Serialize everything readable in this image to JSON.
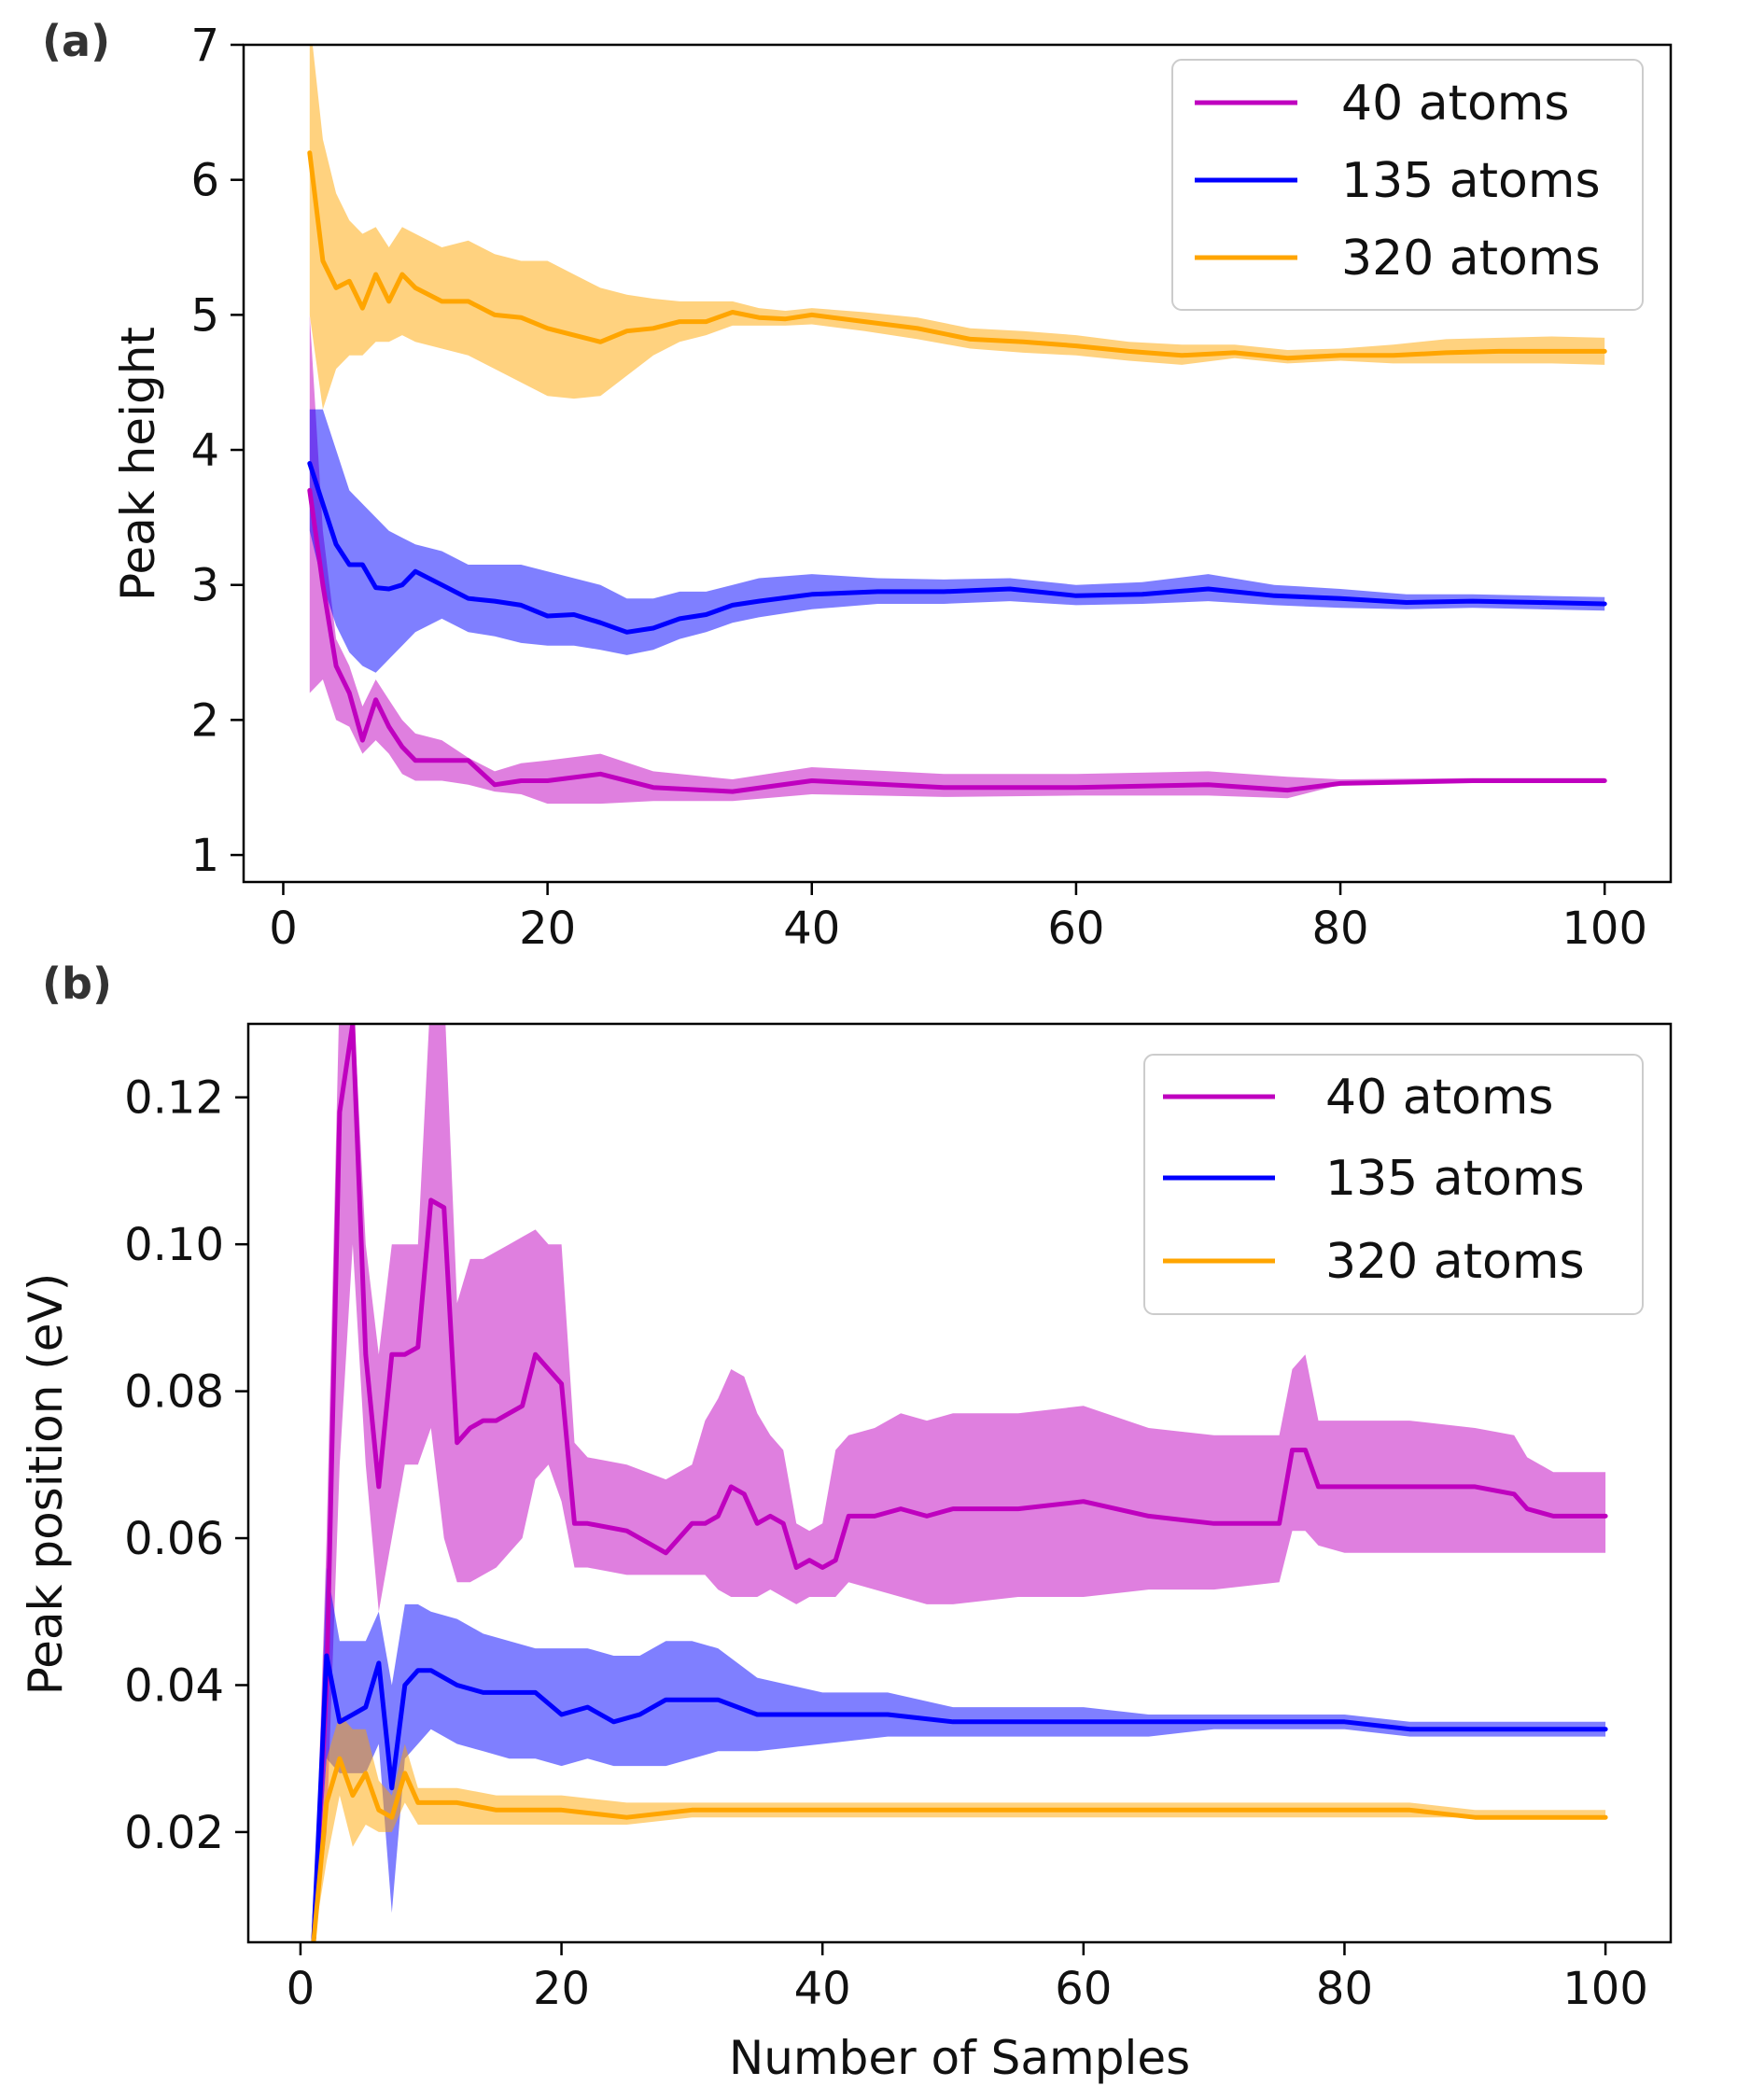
{
  "figure": {
    "xlabel": "Number of Samples"
  },
  "chart_data": [
    {
      "type": "line",
      "panel_label": "(a)",
      "title": "",
      "xlabel": "",
      "ylabel": "Peak height",
      "xlim": [
        -3,
        105
      ],
      "ylim": [
        0.8,
        7.0
      ],
      "xticks": [
        0,
        20,
        40,
        60,
        80,
        100
      ],
      "xtick_labels": [
        "0",
        "20",
        "40",
        "60",
        "80",
        "100"
      ],
      "yticks": [
        1,
        2,
        3,
        4,
        5,
        6,
        7
      ],
      "ytick_labels": [
        "1",
        "2",
        "3",
        "4",
        "5",
        "6",
        "7"
      ],
      "grid": false,
      "legend_position": "top-right",
      "series": [
        {
          "name": "40 atoms",
          "color": "#BF00BF",
          "x": [
            2,
            3,
            4,
            5,
            6,
            7,
            8,
            9,
            10,
            12,
            14,
            16,
            18,
            20,
            24,
            28,
            34,
            40,
            50,
            60,
            70,
            76,
            80,
            90,
            100
          ],
          "y": [
            3.7,
            3.0,
            2.4,
            2.2,
            1.85,
            2.15,
            1.95,
            1.8,
            1.7,
            1.7,
            1.7,
            1.52,
            1.55,
            1.55,
            1.6,
            1.5,
            1.47,
            1.55,
            1.5,
            1.5,
            1.52,
            1.48,
            1.53,
            1.55,
            1.55
          ],
          "lower": [
            2.2,
            2.3,
            2.0,
            1.95,
            1.75,
            1.85,
            1.75,
            1.6,
            1.55,
            1.55,
            1.52,
            1.47,
            1.45,
            1.38,
            1.38,
            1.4,
            1.4,
            1.45,
            1.43,
            1.44,
            1.44,
            1.42,
            1.52,
            1.54,
            1.54
          ],
          "upper": [
            5.0,
            3.4,
            2.6,
            2.4,
            2.1,
            2.3,
            2.15,
            2.0,
            1.9,
            1.85,
            1.72,
            1.62,
            1.68,
            1.7,
            1.75,
            1.62,
            1.56,
            1.65,
            1.6,
            1.6,
            1.62,
            1.58,
            1.56,
            1.57,
            1.57
          ]
        },
        {
          "name": "135 atoms",
          "color": "#0000FF",
          "x": [
            2,
            3,
            4,
            5,
            6,
            7,
            8,
            9,
            10,
            12,
            14,
            16,
            18,
            20,
            22,
            24,
            26,
            28,
            30,
            32,
            34,
            36,
            40,
            45,
            50,
            55,
            60,
            65,
            70,
            75,
            80,
            85,
            90,
            95,
            100
          ],
          "y": [
            3.9,
            3.6,
            3.3,
            3.15,
            3.15,
            2.98,
            2.97,
            3.0,
            3.1,
            3.0,
            2.9,
            2.88,
            2.85,
            2.77,
            2.78,
            2.72,
            2.65,
            2.68,
            2.75,
            2.78,
            2.85,
            2.88,
            2.93,
            2.95,
            2.95,
            2.97,
            2.92,
            2.93,
            2.97,
            2.92,
            2.9,
            2.87,
            2.88,
            2.87,
            2.86
          ],
          "lower": [
            3.4,
            3.0,
            2.7,
            2.5,
            2.4,
            2.35,
            2.45,
            2.55,
            2.65,
            2.75,
            2.65,
            2.62,
            2.57,
            2.55,
            2.55,
            2.52,
            2.48,
            2.52,
            2.6,
            2.65,
            2.72,
            2.76,
            2.82,
            2.86,
            2.86,
            2.88,
            2.85,
            2.86,
            2.88,
            2.85,
            2.83,
            2.82,
            2.83,
            2.82,
            2.81
          ],
          "upper": [
            4.3,
            4.3,
            4.0,
            3.7,
            3.6,
            3.5,
            3.4,
            3.35,
            3.3,
            3.25,
            3.15,
            3.15,
            3.15,
            3.1,
            3.05,
            3.0,
            2.9,
            2.9,
            2.95,
            2.95,
            3.0,
            3.05,
            3.08,
            3.05,
            3.04,
            3.05,
            3.0,
            3.02,
            3.08,
            3.0,
            2.97,
            2.93,
            2.93,
            2.92,
            2.91
          ]
        },
        {
          "name": "320 atoms",
          "color": "#FFA500",
          "x": [
            2,
            3,
            4,
            5,
            6,
            7,
            8,
            9,
            10,
            12,
            14,
            16,
            18,
            20,
            22,
            24,
            26,
            28,
            30,
            32,
            34,
            36,
            38,
            40,
            44,
            48,
            52,
            56,
            60,
            64,
            68,
            72,
            76,
            80,
            84,
            88,
            92,
            96,
            100
          ],
          "y": [
            6.2,
            5.4,
            5.2,
            5.25,
            5.05,
            5.3,
            5.1,
            5.3,
            5.2,
            5.1,
            5.1,
            5.0,
            4.98,
            4.9,
            4.85,
            4.8,
            4.88,
            4.9,
            4.95,
            4.95,
            5.02,
            4.98,
            4.97,
            5.0,
            4.95,
            4.9,
            4.82,
            4.8,
            4.77,
            4.73,
            4.7,
            4.72,
            4.68,
            4.7,
            4.7,
            4.72,
            4.73,
            4.73,
            4.73
          ],
          "lower": [
            5.0,
            4.3,
            4.6,
            4.7,
            4.7,
            4.8,
            4.8,
            4.85,
            4.8,
            4.75,
            4.7,
            4.6,
            4.5,
            4.4,
            4.38,
            4.4,
            4.55,
            4.7,
            4.8,
            4.85,
            4.92,
            4.92,
            4.92,
            4.93,
            4.88,
            4.82,
            4.75,
            4.72,
            4.7,
            4.66,
            4.63,
            4.68,
            4.64,
            4.66,
            4.64,
            4.64,
            4.64,
            4.64,
            4.63
          ],
          "upper": [
            7.2,
            6.3,
            5.9,
            5.7,
            5.6,
            5.65,
            5.5,
            5.65,
            5.6,
            5.5,
            5.55,
            5.45,
            5.4,
            5.4,
            5.3,
            5.2,
            5.15,
            5.12,
            5.1,
            5.1,
            5.1,
            5.05,
            5.03,
            5.05,
            5.02,
            4.98,
            4.9,
            4.88,
            4.85,
            4.8,
            4.78,
            4.78,
            4.74,
            4.75,
            4.78,
            4.82,
            4.83,
            4.84,
            4.83
          ]
        }
      ]
    },
    {
      "type": "line",
      "panel_label": "(b)",
      "title": "",
      "xlabel": "Number of Samples",
      "ylabel": "Peak position (eV)",
      "xlim": [
        -4,
        105
      ],
      "ylim": [
        0.005,
        0.13
      ],
      "xticks": [
        0,
        20,
        40,
        60,
        80,
        100
      ],
      "xtick_labels": [
        "0",
        "20",
        "40",
        "60",
        "80",
        "100"
      ],
      "yticks": [
        0.02,
        0.04,
        0.06,
        0.08,
        0.1,
        0.12
      ],
      "ytick_labels": [
        "0.02",
        "0.04",
        "0.06",
        "0.08",
        "0.10",
        "0.12"
      ],
      "grid": false,
      "legend_position": "top-right",
      "series": [
        {
          "name": "40 atoms",
          "color": "#BF00BF",
          "x": [
            1,
            2,
            3,
            4,
            5,
            6,
            7,
            8,
            9,
            10,
            11,
            12,
            13,
            14,
            15,
            16,
            17,
            18,
            19,
            20,
            21,
            22,
            25,
            28,
            30,
            31,
            32,
            33,
            34,
            35,
            36,
            37,
            38,
            39,
            40,
            41,
            42,
            44,
            46,
            48,
            50,
            55,
            60,
            65,
            70,
            75,
            76,
            77,
            78,
            80,
            85,
            90,
            93,
            94,
            96,
            98,
            100
          ],
          "y": [
            0.005,
            0.04,
            0.118,
            0.13,
            0.085,
            0.067,
            0.085,
            0.085,
            0.086,
            0.106,
            0.105,
            0.073,
            0.075,
            0.076,
            0.076,
            0.077,
            0.078,
            0.085,
            0.083,
            0.081,
            0.062,
            0.062,
            0.061,
            0.058,
            0.062,
            0.062,
            0.063,
            0.067,
            0.066,
            0.062,
            0.063,
            0.062,
            0.056,
            0.057,
            0.056,
            0.057,
            0.063,
            0.063,
            0.064,
            0.063,
            0.064,
            0.064,
            0.065,
            0.063,
            0.062,
            0.062,
            0.072,
            0.072,
            0.067,
            0.067,
            0.067,
            0.067,
            0.066,
            0.064,
            0.063,
            0.063,
            0.063
          ],
          "lower": [
            0.005,
            0.02,
            0.07,
            0.1,
            0.07,
            0.05,
            0.06,
            0.07,
            0.07,
            0.075,
            0.06,
            0.054,
            0.054,
            0.055,
            0.056,
            0.058,
            0.06,
            0.068,
            0.07,
            0.065,
            0.056,
            0.056,
            0.055,
            0.055,
            0.055,
            0.055,
            0.053,
            0.052,
            0.052,
            0.052,
            0.053,
            0.052,
            0.051,
            0.052,
            0.052,
            0.052,
            0.054,
            0.053,
            0.052,
            0.051,
            0.051,
            0.052,
            0.052,
            0.053,
            0.053,
            0.054,
            0.061,
            0.061,
            0.059,
            0.058,
            0.058,
            0.058,
            0.058,
            0.058,
            0.058,
            0.058,
            0.058
          ],
          "upper": [
            0.005,
            0.06,
            0.135,
            0.135,
            0.1,
            0.085,
            0.1,
            0.1,
            0.1,
            0.135,
            0.135,
            0.092,
            0.098,
            0.098,
            0.099,
            0.1,
            0.101,
            0.102,
            0.1,
            0.1,
            0.073,
            0.071,
            0.07,
            0.068,
            0.07,
            0.076,
            0.079,
            0.083,
            0.082,
            0.077,
            0.074,
            0.072,
            0.062,
            0.061,
            0.062,
            0.072,
            0.074,
            0.075,
            0.077,
            0.076,
            0.077,
            0.077,
            0.078,
            0.075,
            0.074,
            0.074,
            0.083,
            0.085,
            0.076,
            0.076,
            0.076,
            0.075,
            0.074,
            0.071,
            0.069,
            0.069,
            0.069
          ]
        },
        {
          "name": "135 atoms",
          "color": "#0000FF",
          "x": [
            1,
            2,
            3,
            4,
            5,
            6,
            7,
            8,
            9,
            10,
            12,
            14,
            16,
            18,
            20,
            22,
            24,
            26,
            28,
            30,
            32,
            35,
            40,
            45,
            50,
            55,
            60,
            65,
            70,
            75,
            80,
            85,
            90,
            95,
            100
          ],
          "y": [
            0.005,
            0.044,
            0.035,
            0.036,
            0.037,
            0.043,
            0.026,
            0.04,
            0.042,
            0.042,
            0.04,
            0.039,
            0.039,
            0.039,
            0.036,
            0.037,
            0.035,
            0.036,
            0.038,
            0.038,
            0.038,
            0.036,
            0.036,
            0.036,
            0.035,
            0.035,
            0.035,
            0.035,
            0.035,
            0.035,
            0.035,
            0.034,
            0.034,
            0.034,
            0.034
          ],
          "lower": [
            0.005,
            0.03,
            0.028,
            0.028,
            0.028,
            0.032,
            0.009,
            0.03,
            0.032,
            0.034,
            0.032,
            0.031,
            0.03,
            0.03,
            0.029,
            0.03,
            0.029,
            0.029,
            0.029,
            0.03,
            0.031,
            0.031,
            0.032,
            0.033,
            0.033,
            0.033,
            0.033,
            0.033,
            0.034,
            0.034,
            0.034,
            0.033,
            0.033,
            0.033,
            0.033
          ],
          "upper": [
            0.005,
            0.056,
            0.046,
            0.046,
            0.046,
            0.05,
            0.04,
            0.051,
            0.051,
            0.05,
            0.049,
            0.047,
            0.046,
            0.045,
            0.045,
            0.045,
            0.044,
            0.044,
            0.046,
            0.046,
            0.045,
            0.041,
            0.039,
            0.039,
            0.037,
            0.037,
            0.037,
            0.036,
            0.036,
            0.036,
            0.036,
            0.035,
            0.035,
            0.035,
            0.035
          ]
        },
        {
          "name": "320 atoms",
          "color": "#FFA500",
          "x": [
            1,
            2,
            3,
            4,
            5,
            6,
            7,
            8,
            9,
            10,
            12,
            15,
            20,
            25,
            30,
            35,
            40,
            45,
            50,
            55,
            60,
            65,
            70,
            75,
            80,
            85,
            90,
            95,
            100
          ],
          "y": [
            0.005,
            0.024,
            0.03,
            0.025,
            0.028,
            0.023,
            0.022,
            0.028,
            0.024,
            0.024,
            0.024,
            0.023,
            0.023,
            0.022,
            0.023,
            0.023,
            0.023,
            0.023,
            0.023,
            0.023,
            0.023,
            0.023,
            0.023,
            0.023,
            0.023,
            0.023,
            0.022,
            0.022,
            0.022
          ],
          "lower": [
            0.005,
            0.016,
            0.025,
            0.018,
            0.021,
            0.02,
            0.02,
            0.024,
            0.021,
            0.021,
            0.021,
            0.021,
            0.021,
            0.021,
            0.022,
            0.022,
            0.022,
            0.022,
            0.022,
            0.022,
            0.022,
            0.022,
            0.022,
            0.022,
            0.022,
            0.022,
            0.022,
            0.022,
            0.022
          ],
          "upper": [
            0.005,
            0.03,
            0.036,
            0.034,
            0.034,
            0.027,
            0.025,
            0.032,
            0.026,
            0.026,
            0.026,
            0.025,
            0.025,
            0.024,
            0.024,
            0.024,
            0.024,
            0.024,
            0.024,
            0.024,
            0.024,
            0.024,
            0.024,
            0.024,
            0.024,
            0.024,
            0.023,
            0.023,
            0.023
          ]
        }
      ]
    }
  ]
}
